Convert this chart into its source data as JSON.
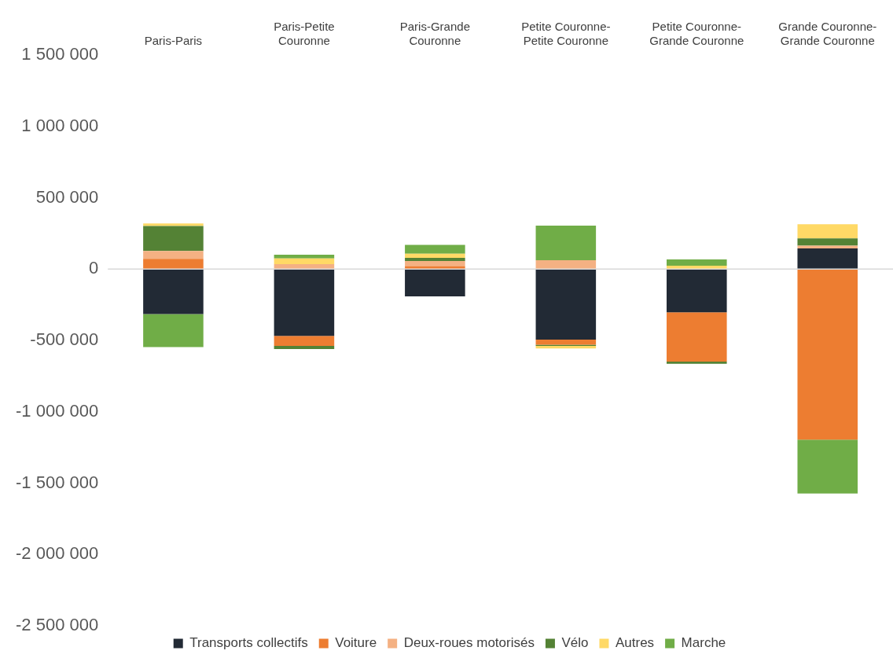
{
  "chart_data": {
    "type": "bar",
    "stacked": true,
    "categories": [
      "Paris-Paris",
      "Paris-Petite Couronne",
      "Paris-Grande Couronne",
      "Petite Couronne-Petite Couronne",
      "Petite Couronne-Grande Couronne",
      "Grande Couronne-Grande Couronne"
    ],
    "series": [
      {
        "name": "Transports collectifs",
        "color": "#222a35",
        "values": [
          -315000,
          -468000,
          -191000,
          -494000,
          -303000,
          144000
        ]
      },
      {
        "name": "Voiture",
        "color": "#ed7d31",
        "values": [
          71000,
          -71000,
          21000,
          -36000,
          -346000,
          -1195000
        ]
      },
      {
        "name": "Deux-roues motorisés",
        "color": "#f4b183",
        "values": [
          56000,
          34000,
          36000,
          62000,
          null,
          20000
        ]
      },
      {
        "name": "Vélo",
        "color": "#548235",
        "values": [
          175000,
          -22000,
          21000,
          -9000,
          -15000,
          51000
        ]
      },
      {
        "name": "Autres",
        "color": "#ffd966",
        "values": [
          17000,
          41000,
          30000,
          -17000,
          24000,
          99000
        ]
      },
      {
        "name": "Marche",
        "color": "#70ad47",
        "values": [
          -232000,
          26000,
          62000,
          242000,
          43000,
          -378000
        ]
      }
    ],
    "ylim": [
      -2500000,
      1500000
    ],
    "yticks": [
      {
        "value": -2500000,
        "label": "-2 500 000"
      },
      {
        "value": -2000000,
        "label": "-2 000 000"
      },
      {
        "value": -1500000,
        "label": "-1 500 000"
      },
      {
        "value": -1000000,
        "label": "-1 000 000"
      },
      {
        "value": -500000,
        "label": "-500 000"
      },
      {
        "value": 0,
        "label": "0"
      },
      {
        "value": 500000,
        "label": "500 000"
      },
      {
        "value": 1000000,
        "label": "1 000 000"
      },
      {
        "value": 1500000,
        "label": "1 500 000"
      }
    ],
    "ref_lines": [
      {
        "axis": "y",
        "value": 0,
        "color": "#d9d9d9"
      }
    ],
    "grid": false,
    "legend": "bottom"
  }
}
